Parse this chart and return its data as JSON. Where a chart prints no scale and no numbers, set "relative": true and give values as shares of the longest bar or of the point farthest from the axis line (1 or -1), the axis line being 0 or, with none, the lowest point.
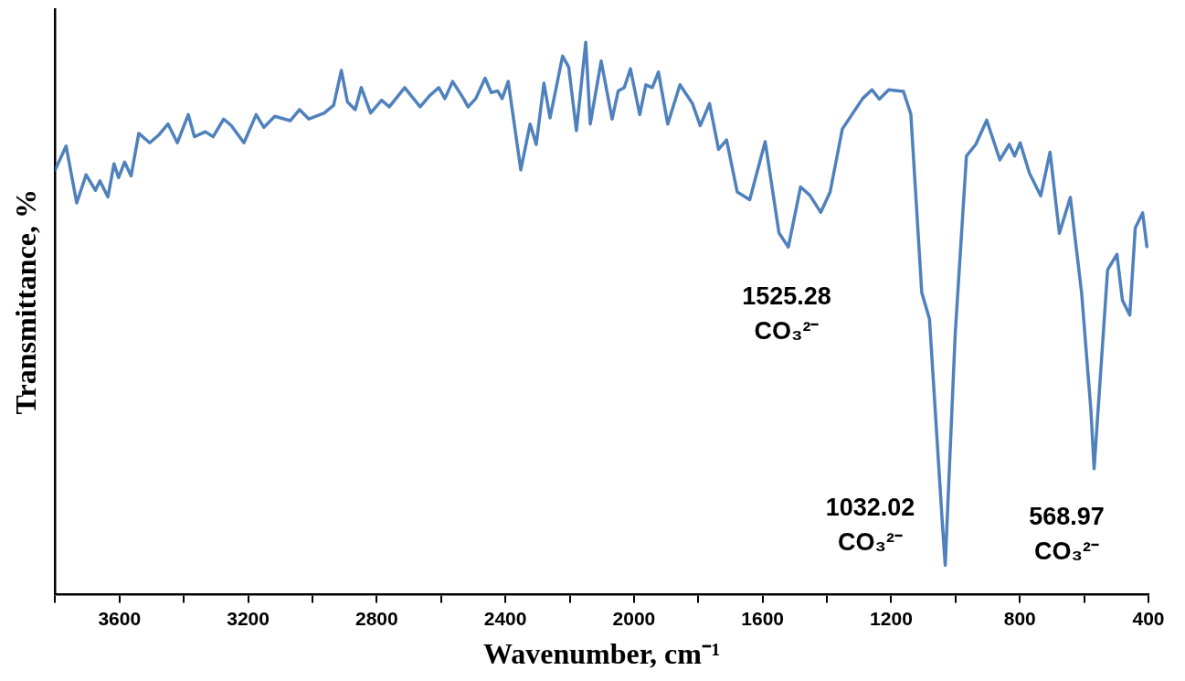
{
  "chart_data": {
    "type": "line",
    "relative": true,
    "xlabel": "Wavenumber, cm⁻¹",
    "ylabel": "Transmittance, %",
    "xlim": [
      3800,
      400
    ],
    "xticks": [
      {
        "value": 3800,
        "label": null
      },
      3600,
      {
        "value": 3400,
        "label": null
      },
      3200,
      {
        "value": 3000,
        "label": null
      },
      2800,
      {
        "value": 2600,
        "label": null
      },
      2400,
      {
        "value": 2200,
        "label": null
      },
      2000,
      {
        "value": 1800,
        "label": null
      },
      1600,
      {
        "value": 1400,
        "label": null
      },
      1200,
      {
        "value": 1000,
        "label": null
      },
      800,
      {
        "value": 600,
        "label": null
      },
      400
    ],
    "grid": false,
    "legend": false,
    "marker": "none",
    "line_style": "solid",
    "series": [
      {
        "color": "#4f81bd",
        "x": [
          3800,
          3766,
          3733,
          3704,
          3675,
          3661,
          3636,
          3617,
          3603,
          3584,
          3564,
          3540,
          3506,
          3478,
          3449,
          3420,
          3386,
          3367,
          3333,
          3309,
          3276,
          3252,
          3213,
          3175,
          3151,
          3117,
          3069,
          3040,
          3011,
          2963,
          2934,
          2910,
          2891,
          2867,
          2848,
          2819,
          2785,
          2761,
          2713,
          2665,
          2636,
          2607,
          2588,
          2564,
          2530,
          2516,
          2492,
          2463,
          2444,
          2424,
          2410,
          2391,
          2352,
          2323,
          2304,
          2280,
          2261,
          2222,
          2203,
          2179,
          2150,
          2136,
          2102,
          2068,
          2049,
          2030,
          2011,
          1982,
          1963,
          1943,
          1924,
          1895,
          1857,
          1818,
          1794,
          1765,
          1737,
          1712,
          1679,
          1640,
          1592,
          1549,
          1520,
          1482,
          1453,
          1419,
          1390,
          1352,
          1289,
          1260,
          1237,
          1208,
          1162,
          1139,
          1105,
          1081,
          1041,
          1032,
          1001,
          966,
          937,
          903,
          862,
          833,
          816,
          799,
          770,
          735,
          706,
          677,
          643,
          608,
          579,
          569,
          527,
          498,
          481,
          458,
          441,
          418,
          405
        ],
        "values": [
          0.769,
          0.812,
          0.709,
          0.76,
          0.732,
          0.749,
          0.72,
          0.78,
          0.755,
          0.783,
          0.758,
          0.835,
          0.818,
          0.832,
          0.852,
          0.818,
          0.869,
          0.829,
          0.838,
          0.829,
          0.861,
          0.849,
          0.818,
          0.869,
          0.846,
          0.866,
          0.858,
          0.878,
          0.861,
          0.872,
          0.886,
          0.949,
          0.892,
          0.878,
          0.918,
          0.872,
          0.895,
          0.883,
          0.918,
          0.883,
          0.903,
          0.918,
          0.898,
          0.929,
          0.898,
          0.883,
          0.898,
          0.935,
          0.909,
          0.912,
          0.898,
          0.929,
          0.769,
          0.852,
          0.815,
          0.926,
          0.863,
          0.975,
          0.955,
          0.84,
          1,
          0.852,
          0.966,
          0.861,
          0.912,
          0.918,
          0.952,
          0.869,
          0.923,
          0.918,
          0.946,
          0.852,
          0.923,
          0.889,
          0.849,
          0.889,
          0.806,
          0.823,
          0.729,
          0.715,
          0.82,
          0.655,
          0.629,
          0.738,
          0.723,
          0.692,
          0.729,
          0.843,
          0.898,
          0.914,
          0.897,
          0.914,
          0.911,
          0.87,
          0.547,
          0.499,
          0.129,
          0.053,
          0.472,
          0.794,
          0.815,
          0.859,
          0.787,
          0.815,
          0.794,
          0.818,
          0.763,
          0.722,
          0.801,
          0.654,
          0.719,
          0.547,
          0.334,
          0.228,
          0.588,
          0.616,
          0.533,
          0.506,
          0.664,
          0.691,
          0.63
        ]
      }
    ],
    "annotations": [
      {
        "text": "1525.28\nCO₃²⁻",
        "x": 1525.28,
        "y": 0.629
      },
      {
        "text": "1032.02\nCO₃²⁻",
        "x": 1032.02,
        "y": 0.053
      },
      {
        "text": "568.97\nCO₃²⁻",
        "x": 568.97,
        "y": 0.228
      }
    ]
  }
}
